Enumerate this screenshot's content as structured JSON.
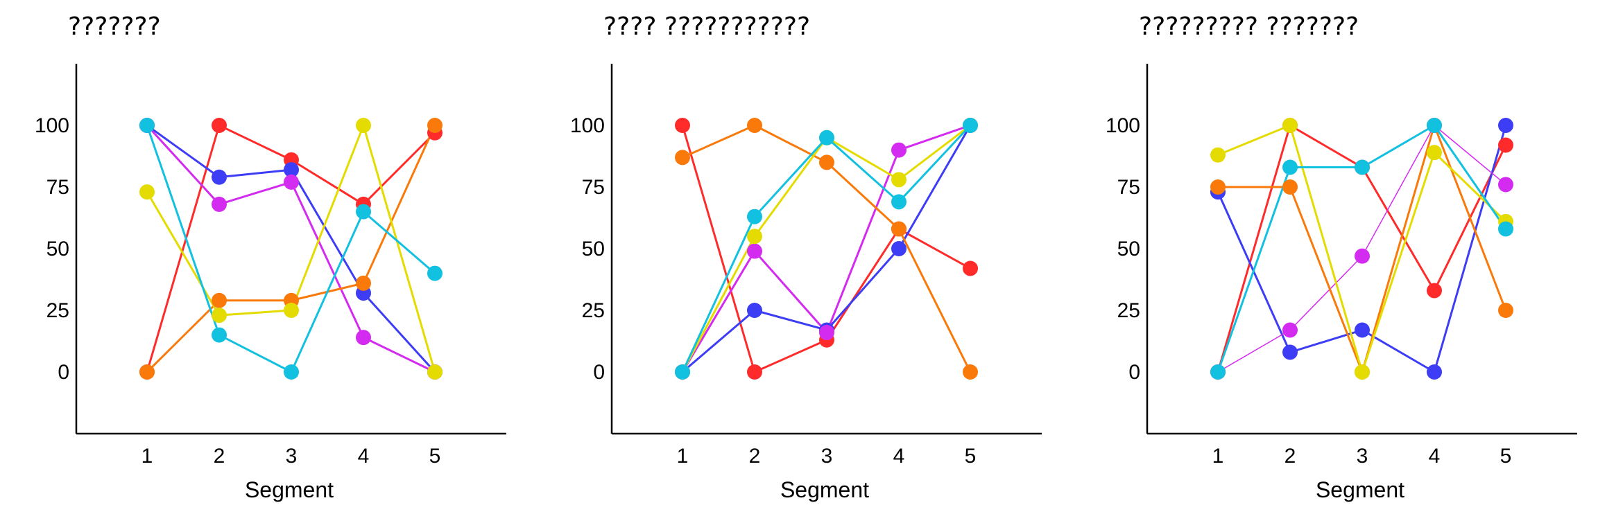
{
  "chart_data": [
    {
      "type": "line",
      "title": "???????",
      "xlabel": "Segment",
      "ylabel": "",
      "x": [
        1,
        2,
        3,
        4,
        5
      ],
      "ylim": [
        -25,
        125
      ],
      "y_ticks": [
        0,
        25,
        50,
        75,
        100
      ],
      "grid": false,
      "series": [
        {
          "color": "#ff2b2b",
          "values": [
            0,
            100,
            86,
            68,
            97
          ]
        },
        {
          "color": "#3d3df5",
          "values": [
            100,
            79,
            82,
            32,
            0
          ]
        },
        {
          "color": "#d42bf0",
          "values": [
            100,
            68,
            77,
            14,
            0
          ]
        },
        {
          "color": "#f97a0a",
          "values": [
            0,
            29,
            29,
            36,
            100
          ]
        },
        {
          "color": "#e4dc00",
          "values": [
            73,
            23,
            25,
            100,
            0
          ]
        },
        {
          "color": "#12c1e0",
          "values": [
            100,
            15,
            0,
            65,
            40
          ]
        }
      ]
    },
    {
      "type": "line",
      "title": "???? ???????????",
      "xlabel": "Segment",
      "ylabel": "",
      "x": [
        1,
        2,
        3,
        4,
        5
      ],
      "ylim": [
        -25,
        125
      ],
      "y_ticks": [
        0,
        25,
        50,
        75,
        100
      ],
      "grid": false,
      "series": [
        {
          "color": "#ff2b2b",
          "values": [
            100,
            0,
            13,
            58,
            42
          ]
        },
        {
          "color": "#3d3df5",
          "values": [
            0,
            25,
            17,
            50,
            100
          ]
        },
        {
          "color": "#d42bf0",
          "values": [
            0,
            49,
            16,
            90,
            100
          ]
        },
        {
          "color": "#f97a0a",
          "values": [
            87,
            100,
            85,
            58,
            0
          ]
        },
        {
          "color": "#e4dc00",
          "values": [
            0,
            55,
            95,
            78,
            100
          ]
        },
        {
          "color": "#12c1e0",
          "values": [
            0,
            63,
            95,
            69,
            100
          ]
        }
      ]
    },
    {
      "type": "line",
      "title": "????????? ???????",
      "xlabel": "Segment",
      "ylabel": "",
      "x": [
        1,
        2,
        3,
        4,
        5
      ],
      "ylim": [
        -25,
        125
      ],
      "y_ticks": [
        0,
        25,
        50,
        75,
        100
      ],
      "grid": false,
      "series": [
        {
          "color": "#ff2b2b",
          "values": [
            0,
            100,
            83,
            33,
            92
          ]
        },
        {
          "color": "#3d3df5",
          "values": [
            73,
            8,
            17,
            0,
            100
          ]
        },
        {
          "color": "#d42bf0",
          "values": [
            0,
            17,
            47,
            100,
            76
          ]
        },
        {
          "color": "#f97a0a",
          "values": [
            75,
            75,
            0,
            100,
            25
          ]
        },
        {
          "color": "#e4dc00",
          "values": [
            88,
            100,
            0,
            89,
            61
          ]
        },
        {
          "color": "#12c1e0",
          "values": [
            0,
            83,
            83,
            100,
            58
          ]
        }
      ]
    }
  ]
}
